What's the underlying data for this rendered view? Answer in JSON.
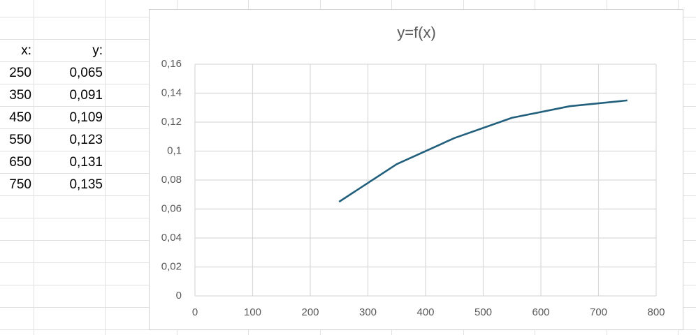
{
  "table": {
    "header": [
      "x:",
      "y:"
    ],
    "rows": [
      [
        "250",
        "0,065"
      ],
      [
        "350",
        "0,091"
      ],
      [
        "450",
        "0,109"
      ],
      [
        "550",
        "0,123"
      ],
      [
        "650",
        "0,131"
      ],
      [
        "750",
        "0,135"
      ]
    ]
  },
  "chart_data": {
    "type": "line",
    "title": "y=f(x)",
    "x": [
      250,
      350,
      450,
      550,
      650,
      750
    ],
    "values": [
      0.065,
      0.091,
      0.109,
      0.123,
      0.131,
      0.135
    ],
    "color": "#215f7c",
    "xlim": [
      0,
      800
    ],
    "xticks": [
      0,
      100,
      200,
      300,
      400,
      500,
      600,
      700,
      800
    ],
    "ylim": [
      0,
      0.16
    ],
    "yticks": [
      0,
      {
        "value": 0.02,
        "label": "0,02"
      },
      {
        "value": 0.04,
        "label": "0,04"
      },
      {
        "value": 0.06,
        "label": "0,06"
      },
      {
        "value": 0.08,
        "label": "0,08"
      },
      {
        "value": 0.1,
        "label": "0,1"
      },
      {
        "value": 0.12,
        "label": "0,12"
      },
      {
        "value": 0.14,
        "label": "0,14"
      },
      {
        "value": 0.16,
        "label": "0,16"
      }
    ],
    "grid": true
  }
}
